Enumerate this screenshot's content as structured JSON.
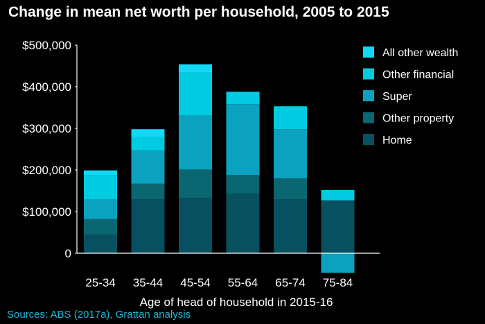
{
  "title": "Change in mean net worth per household, 2005 to 2015",
  "source": "Sources: ABS (2017a), Grattan analysis",
  "colors": {
    "Home": "#07505f",
    "Other property": "#0a6670",
    "Super": "#0ba2c0",
    "Other financial": "#00cbe0",
    "All other wealth": "#12d8f6",
    "axis": "#ffffff",
    "background": "#000000",
    "source_text": "#1fb8d8"
  },
  "chart_data": {
    "type": "bar",
    "stacked": true,
    "title": "Change in mean net worth per household, 2005 to 2015",
    "xlabel": "Age of head of household in 2015-16",
    "ylabel": "",
    "ylim": [
      0,
      500000
    ],
    "ytick_values": [
      0,
      100000,
      200000,
      300000,
      400000,
      500000
    ],
    "ytick_labels": [
      "0",
      "$100,000",
      "$200,000",
      "$300,000",
      "$400,000",
      "$500,000"
    ],
    "categories": [
      "25-34",
      "35-44",
      "45-54",
      "55-64",
      "65-74",
      "75-84"
    ],
    "series": [
      {
        "name": "Home",
        "values": [
          45000,
          130000,
          133000,
          143000,
          130000,
          127000
        ]
      },
      {
        "name": "Other property",
        "values": [
          37000,
          37000,
          68000,
          45000,
          50000,
          0
        ]
      },
      {
        "name": "Super",
        "values": [
          48000,
          80000,
          130000,
          170000,
          118000,
          -47000
        ]
      },
      {
        "name": "Other financial",
        "values": [
          57000,
          33000,
          103000,
          30000,
          55000,
          25000
        ]
      },
      {
        "name": "All other wealth",
        "values": [
          12000,
          18000,
          20000,
          0,
          0,
          0
        ]
      }
    ],
    "legend_order": [
      "All other wealth",
      "Other financial",
      "Super",
      "Other property",
      "Home"
    ],
    "legend_position": "right",
    "grid": false
  }
}
